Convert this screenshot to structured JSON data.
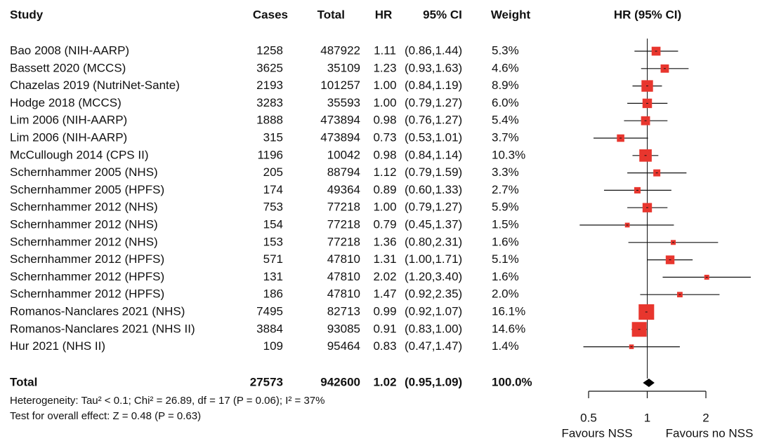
{
  "chart_data": {
    "type": "forest",
    "headers": {
      "study": "Study",
      "cases": "Cases",
      "total": "Total",
      "hr": "HR",
      "ci": "95% CI",
      "weight": "Weight",
      "plot": "HR (95% CI)"
    },
    "rows": [
      {
        "study": "Bao 2008 (NIH-AARP)",
        "cases": 1258,
        "total": 487922,
        "hr": 1.11,
        "hr_label": "1.11",
        "ci": [
          0.86,
          1.44
        ],
        "ci_label": "(0.86,1.44)",
        "weight": 5.3,
        "weight_label": "5.3%"
      },
      {
        "study": "Bassett 2020 (MCCS)",
        "cases": 3625,
        "total": 35109,
        "hr": 1.23,
        "hr_label": "1.23",
        "ci": [
          0.93,
          1.63
        ],
        "ci_label": "(0.93,1.63)",
        "weight": 4.6,
        "weight_label": "4.6%"
      },
      {
        "study": "Chazelas 2019 (NutriNet-Sante)",
        "cases": 2193,
        "total": 101257,
        "hr": 1.0,
        "hr_label": "1.00",
        "ci": [
          0.84,
          1.19
        ],
        "ci_label": "(0.84,1.19)",
        "weight": 8.9,
        "weight_label": "8.9%"
      },
      {
        "study": "Hodge 2018 (MCCS)",
        "cases": 3283,
        "total": 35593,
        "hr": 1.0,
        "hr_label": "1.00",
        "ci": [
          0.79,
          1.27
        ],
        "ci_label": "(0.79,1.27)",
        "weight": 6.0,
        "weight_label": "6.0%"
      },
      {
        "study": "Lim 2006 (NIH-AARP)",
        "cases": 1888,
        "total": 473894,
        "hr": 0.98,
        "hr_label": "0.98",
        "ci": [
          0.76,
          1.27
        ],
        "ci_label": "(0.76,1.27)",
        "weight": 5.4,
        "weight_label": "5.4%"
      },
      {
        "study": "Lim 2006 (NIH-AARP)",
        "cases": 315,
        "total": 473894,
        "hr": 0.73,
        "hr_label": "0.73",
        "ci": [
          0.53,
          1.01
        ],
        "ci_label": "(0.53,1.01)",
        "weight": 3.7,
        "weight_label": "3.7%"
      },
      {
        "study": "McCullough 2014 (CPS II)",
        "cases": 1196,
        "total": 10042,
        "hr": 0.98,
        "hr_label": "0.98",
        "ci": [
          0.84,
          1.14
        ],
        "ci_label": "(0.84,1.14)",
        "weight": 10.3,
        "weight_label": "10.3%"
      },
      {
        "study": "Schernhammer 2005 (NHS)",
        "cases": 205,
        "total": 88794,
        "hr": 1.12,
        "hr_label": "1.12",
        "ci": [
          0.79,
          1.59
        ],
        "ci_label": "(0.79,1.59)",
        "weight": 3.3,
        "weight_label": "3.3%"
      },
      {
        "study": "Schernhammer 2005 (HPFS)",
        "cases": 174,
        "total": 49364,
        "hr": 0.89,
        "hr_label": "0.89",
        "ci": [
          0.6,
          1.33
        ],
        "ci_label": "(0.60,1.33)",
        "weight": 2.7,
        "weight_label": "2.7%"
      },
      {
        "study": "Schernhammer 2012 (NHS)",
        "cases": 753,
        "total": 77218,
        "hr": 1.0,
        "hr_label": "1.00",
        "ci": [
          0.79,
          1.27
        ],
        "ci_label": "(0.79,1.27)",
        "weight": 5.9,
        "weight_label": "5.9%"
      },
      {
        "study": "Schernhammer 2012 (NHS)",
        "cases": 154,
        "total": 77218,
        "hr": 0.79,
        "hr_label": "0.79",
        "ci": [
          0.45,
          1.37
        ],
        "ci_label": "(0.45,1.37)",
        "weight": 1.5,
        "weight_label": "1.5%"
      },
      {
        "study": "Schernhammer 2012 (NHS)",
        "cases": 153,
        "total": 77218,
        "hr": 1.36,
        "hr_label": "1.36",
        "ci": [
          0.8,
          2.31
        ],
        "ci_label": "(0.80,2.31)",
        "weight": 1.6,
        "weight_label": "1.6%"
      },
      {
        "study": "Schernhammer 2012 (HPFS)",
        "cases": 571,
        "total": 47810,
        "hr": 1.31,
        "hr_label": "1.31",
        "ci": [
          1.0,
          1.71
        ],
        "ci_label": "(1.00,1.71)",
        "weight": 5.1,
        "weight_label": "5.1%"
      },
      {
        "study": "Schernhammer 2012 (HPFS)",
        "cases": 131,
        "total": 47810,
        "hr": 2.02,
        "hr_label": "2.02",
        "ci": [
          1.2,
          3.4
        ],
        "ci_label": "(1.20,3.40)",
        "weight": 1.6,
        "weight_label": "1.6%"
      },
      {
        "study": "Schernhammer 2012 (HPFS)",
        "cases": 186,
        "total": 47810,
        "hr": 1.47,
        "hr_label": "1.47",
        "ci": [
          0.92,
          2.35
        ],
        "ci_label": "(0.92,2.35)",
        "weight": 2.0,
        "weight_label": "2.0%"
      },
      {
        "study": "Romanos-Nanclares 2021 (NHS)",
        "cases": 7495,
        "total": 82713,
        "hr": 0.99,
        "hr_label": "0.99",
        "ci": [
          0.92,
          1.07
        ],
        "ci_label": "(0.92,1.07)",
        "weight": 16.1,
        "weight_label": "16.1%"
      },
      {
        "study": "Romanos-Nanclares 2021 (NHS II)",
        "cases": 3884,
        "total": 93085,
        "hr": 0.91,
        "hr_label": "0.91",
        "ci": [
          0.83,
          1.0
        ],
        "ci_label": "(0.83,1.00)",
        "weight": 14.6,
        "weight_label": "14.6%"
      },
      {
        "study": "Hur 2021 (NHS II)",
        "cases": 109,
        "total": 95464,
        "hr": 0.83,
        "hr_label": "0.83",
        "ci": [
          0.47,
          1.47
        ],
        "ci_label": "(0.47,1.47)",
        "weight": 1.4,
        "weight_label": "1.4%"
      }
    ],
    "overall": {
      "study": "Total",
      "cases": 27573,
      "total": 942600,
      "hr": 1.02,
      "hr_label": "1.02",
      "ci": [
        0.95,
        1.09
      ],
      "ci_label": "(0.95,1.09)",
      "weight": 100.0,
      "weight_label": "100.0%"
    },
    "heterogeneity": "Heterogeneity: Tau² < 0.1; Chi² = 26.89, df = 17 (P = 0.06); I² = 37%",
    "overall_test": "Test for overall effect: Z = 0.48 (P = 0.63)",
    "favours_left": "Favours NSS",
    "favours_right": "Favours no NSS",
    "xscale": "log",
    "xlim": [
      0.5,
      2
    ],
    "xticks": [
      0.5,
      1,
      2
    ],
    "color": "#e8362e"
  }
}
